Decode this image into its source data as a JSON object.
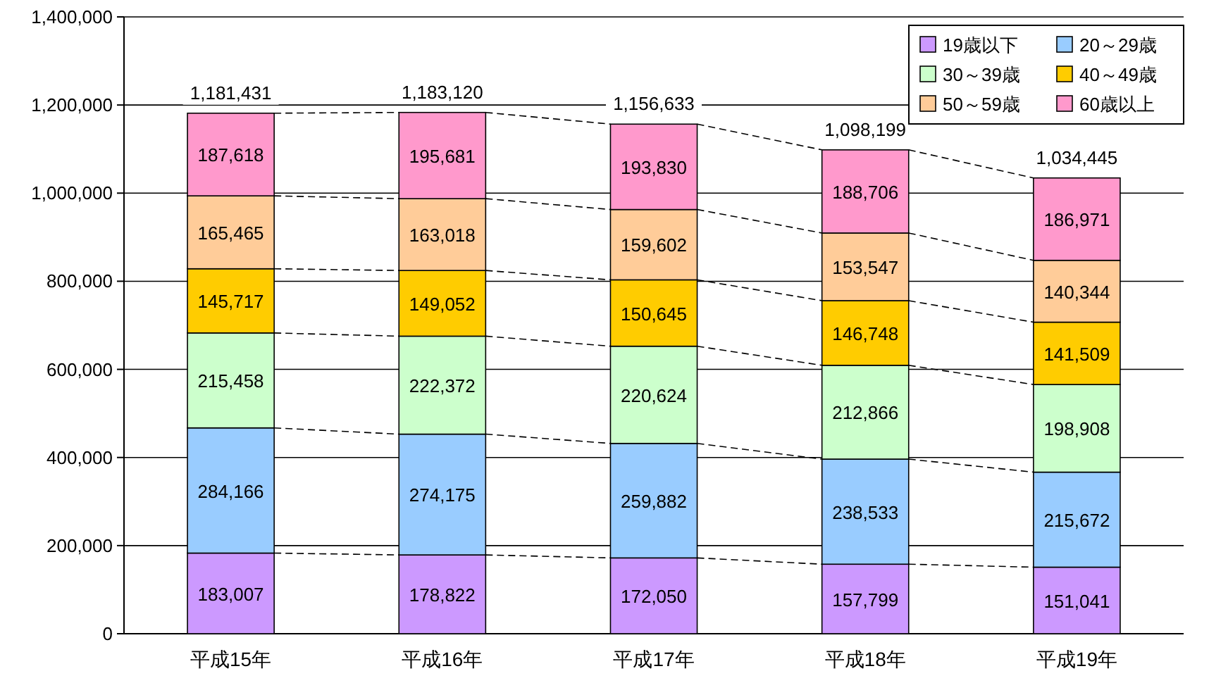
{
  "chart_data": {
    "type": "bar",
    "stacked": true,
    "categories": [
      "平成15年",
      "平成16年",
      "平成17年",
      "平成18年",
      "平成19年"
    ],
    "series": [
      {
        "name": "19歳以下",
        "color": "#cc99ff",
        "values": [
          183007,
          178822,
          172050,
          157799,
          151041
        ],
        "value_labels": [
          "183,007",
          "178,822",
          "172,050",
          "157,799",
          "151,041"
        ]
      },
      {
        "name": "20～29歳",
        "color": "#99ccff",
        "values": [
          284166,
          274175,
          259882,
          238533,
          215672
        ],
        "value_labels": [
          "284,166",
          "274,175",
          "259,882",
          "238,533",
          "215,672"
        ]
      },
      {
        "name": "30～39歳",
        "color": "#ccffcc",
        "values": [
          215458,
          222372,
          220624,
          212866,
          198908
        ],
        "value_labels": [
          "215,458",
          "222,372",
          "220,624",
          "212,866",
          "198,908"
        ]
      },
      {
        "name": "40～49歳",
        "color": "#ffcc00",
        "values": [
          145717,
          149052,
          150645,
          146748,
          141509
        ],
        "value_labels": [
          "145,717",
          "149,052",
          "150,645",
          "146,748",
          "141,509"
        ]
      },
      {
        "name": "50～59歳",
        "color": "#ffcc99",
        "values": [
          165465,
          163018,
          159602,
          153547,
          140344
        ],
        "value_labels": [
          "165,465",
          "163,018",
          "159,602",
          "153,547",
          "140,344"
        ]
      },
      {
        "name": "60歳以上",
        "color": "#ff99cc",
        "values": [
          187618,
          195681,
          193830,
          188706,
          186971
        ],
        "value_labels": [
          "187,618",
          "195,681",
          "193,830",
          "188,706",
          "186,971"
        ]
      }
    ],
    "totals": [
      "1,181,431",
      "1,183,120",
      "1,156,633",
      "1,098,199",
      "1,034,445"
    ],
    "ylim": [
      0,
      1400000
    ],
    "yticks": [
      0,
      {
        "value": 200000,
        "label": "200,000"
      },
      {
        "value": 400000,
        "label": "400,000"
      },
      {
        "value": 600000,
        "label": "600,000"
      },
      {
        "value": 800000,
        "label": "800,000"
      },
      {
        "value": 1000000,
        "label": "1,000,000"
      },
      {
        "value": 1200000,
        "label": "1,200,000"
      },
      {
        "value": 1400000,
        "label": "1,400,000"
      }
    ],
    "grid": "y",
    "legend": "top right"
  }
}
